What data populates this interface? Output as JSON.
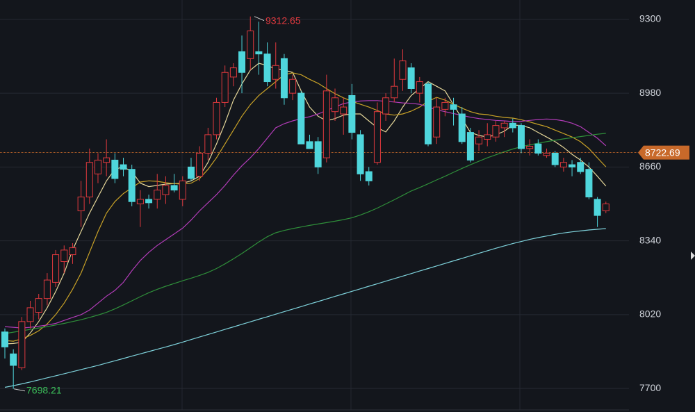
{
  "chart_data": {
    "type": "candlestick",
    "ylim": [
      7607,
      9384
    ],
    "yticks": [
      7700,
      8020,
      8340,
      8660,
      8980,
      9300
    ],
    "grid": true,
    "up_color": "#e0393e",
    "down_color": "#4fd6dc",
    "open": [
      7945,
      7850,
      7790,
      7990,
      8030,
      8090,
      8160,
      8250,
      8280,
      8470,
      8530,
      8630,
      8680,
      8690,
      8670,
      8650,
      8500,
      8520,
      8520,
      8540,
      8580,
      8520,
      8660,
      8620,
      8720,
      8800,
      8940,
      9050,
      9160,
      9130,
      9160,
      9150,
      9040,
      9130,
      8980,
      8980,
      8770,
      8770,
      8700,
      8900,
      8890,
      8970,
      8800,
      8640,
      8680,
      8890,
      8960,
      9040,
      9090,
      8980,
      9020,
      8790,
      8910,
      8930,
      8890,
      8810,
      8760,
      8780,
      8790,
      8830,
      8850,
      8840,
      8740,
      8760,
      8710,
      8720,
      8660,
      8670,
      8680,
      8650,
      8520,
      8470
    ],
    "high": [
      7960,
      7870,
      8010,
      8080,
      8110,
      8200,
      8300,
      8320,
      8330,
      8600,
      8740,
      8720,
      8780,
      8720,
      8700,
      8670,
      8560,
      8540,
      8630,
      8620,
      8630,
      8620,
      8700,
      8750,
      8830,
      8960,
      9100,
      9110,
      9230,
      9312.65,
      9290,
      9200,
      9200,
      9150,
      9060,
      8990,
      8800,
      8790,
      9060,
      9000,
      8960,
      9020,
      8820,
      8660,
      8940,
      8980,
      9130,
      9170,
      9110,
      9050,
      9030,
      8960,
      8960,
      8960,
      8920,
      8830,
      8820,
      8850,
      8860,
      8860,
      8870,
      8850,
      8780,
      8780,
      8740,
      8730,
      8700,
      8690,
      8700,
      8680,
      8530,
      8510
    ],
    "low": [
      7830,
      7698.21,
      7780,
      7960,
      8000,
      8060,
      8140,
      8200,
      8240,
      8400,
      8500,
      8590,
      8620,
      8590,
      8620,
      8490,
      8400,
      8480,
      8480,
      8500,
      8550,
      8490,
      8600,
      8600,
      8690,
      8780,
      8920,
      9010,
      8980,
      9080,
      9060,
      9010,
      9000,
      8930,
      8950,
      8760,
      8740,
      8630,
      8680,
      8860,
      8800,
      8780,
      8600,
      8580,
      8670,
      8860,
      8940,
      8990,
      8980,
      8940,
      8750,
      8760,
      8880,
      8840,
      8760,
      8680,
      8730,
      8750,
      8770,
      8790,
      8810,
      8720,
      8710,
      8710,
      8700,
      8660,
      8640,
      8620,
      8630,
      8520,
      8400,
      8460
    ],
    "close": [
      7880,
      7800,
      7990,
      8050,
      8090,
      8170,
      8280,
      8300,
      8310,
      8530,
      8680,
      8690,
      8700,
      8610,
      8650,
      8510,
      8520,
      8505,
      8560,
      8580,
      8560,
      8600,
      8610,
      8720,
      8800,
      8940,
      9070,
      9090,
      9070,
      9250,
      9150,
      9030,
      9100,
      8960,
      9040,
      8760,
      8740,
      8660,
      8990,
      8960,
      8920,
      8810,
      8630,
      8600,
      8900,
      8960,
      9010,
      9120,
      9000,
      9030,
      8760,
      8920,
      8940,
      8910,
      8770,
      8690,
      8790,
      8800,
      8840,
      8850,
      8830,
      8740,
      8750,
      8720,
      8720,
      8670,
      8680,
      8660,
      8640,
      8530,
      8450,
      8500
    ],
    "lines": [
      {
        "color": "#e6d79a",
        "values": [
          7893,
          7895,
          7900,
          7940,
          7990,
          8050,
          8120,
          8200,
          8300,
          8380,
          8460,
          8530,
          8600,
          8650,
          8661,
          8640,
          8590,
          8575,
          8580,
          8586,
          8588,
          8590,
          8600,
          8620,
          8680,
          8760,
          8850,
          8950,
          9020,
          9080,
          9110,
          9100,
          9085,
          9080,
          9070,
          8990,
          8920,
          8880,
          8860,
          8870,
          8885,
          8890,
          8890,
          8860,
          8830,
          8812,
          8860,
          8920,
          8970,
          9000,
          9030,
          9010,
          8990,
          8930,
          8870,
          8810,
          8797,
          8790,
          8800,
          8815,
          8842,
          8840,
          8830,
          8810,
          8790,
          8770,
          8745,
          8715,
          8690,
          8660,
          8620,
          8577
        ]
      },
      {
        "color": "#c9a227",
        "values": [
          7908,
          7905,
          7915,
          7930,
          7950,
          7980,
          8020,
          8070,
          8130,
          8200,
          8290,
          8380,
          8460,
          8510,
          8545,
          8570,
          8595,
          8600,
          8598,
          8592,
          8588,
          8586,
          8590,
          8610,
          8650,
          8700,
          8760,
          8820,
          8880,
          8930,
          8970,
          9000,
          9030,
          9060,
          9068,
          9060,
          9040,
          9023,
          9000,
          8978,
          8960,
          8945,
          8932,
          8920,
          8905,
          8890,
          8885,
          8890,
          8902,
          8920,
          8945,
          8962,
          8950,
          8932,
          8915,
          8900,
          8890,
          8887,
          8880,
          8875,
          8872,
          8865,
          8855,
          8845,
          8835,
          8820,
          8805,
          8790,
          8770,
          8740,
          8700,
          8661
        ]
      },
      {
        "color": "#b23cb8",
        "values": [
          7968,
          7965,
          7962,
          7965,
          7970,
          7975,
          7982,
          7995,
          8008,
          8020,
          8040,
          8070,
          8100,
          8125,
          8160,
          8210,
          8255,
          8290,
          8320,
          8345,
          8370,
          8395,
          8430,
          8470,
          8505,
          8540,
          8580,
          8625,
          8665,
          8700,
          8740,
          8785,
          8830,
          8848,
          8860,
          8870,
          8878,
          8890,
          8905,
          8920,
          8935,
          8942,
          8946,
          8948,
          8948,
          8945,
          8942,
          8938,
          8936,
          8932,
          8920,
          8908,
          8900,
          8892,
          8884,
          8876,
          8870,
          8866,
          8862,
          8860,
          8857,
          8858,
          8862,
          8866,
          8868,
          8866,
          8860,
          8850,
          8835,
          8810,
          8785,
          8752
        ]
      },
      {
        "color": "#2f8f3a",
        "values": [
          7938,
          7944,
          7950,
          7956,
          7962,
          7968,
          7975,
          7982,
          7990,
          7998,
          8008,
          8018,
          8030,
          8045,
          8062,
          8080,
          8098,
          8115,
          8130,
          8143,
          8155,
          8167,
          8178,
          8190,
          8203,
          8220,
          8240,
          8262,
          8285,
          8310,
          8335,
          8358,
          8375,
          8385,
          8393,
          8400,
          8407,
          8413,
          8419,
          8425,
          8432,
          8440,
          8452,
          8466,
          8482,
          8500,
          8518,
          8537,
          8556,
          8571,
          8587,
          8604,
          8620,
          8637,
          8654,
          8670,
          8685,
          8700,
          8713,
          8726,
          8738,
          8748,
          8756,
          8763,
          8770,
          8776,
          8782,
          8787,
          8792,
          8797,
          8802,
          8806
        ]
      },
      {
        "color": "#7fd3dc",
        "values": [
          7705,
          7712,
          7720,
          7728,
          7737,
          7746,
          7755,
          7764,
          7773,
          7782,
          7791,
          7800,
          7810,
          7820,
          7830,
          7840,
          7850,
          7860,
          7870,
          7880,
          7890,
          7901,
          7912,
          7923,
          7934,
          7945,
          7956,
          7967,
          7978,
          7989,
          8000,
          8011,
          8022,
          8033,
          8044,
          8055,
          8066,
          8077,
          8088,
          8099,
          8110,
          8121,
          8132,
          8143,
          8154,
          8165,
          8176,
          8187,
          8198,
          8209,
          8220,
          8231,
          8242,
          8253,
          8264,
          8275,
          8286,
          8297,
          8308,
          8318,
          8328,
          8337,
          8346,
          8354,
          8361,
          8368,
          8374,
          8379,
          8383,
          8387,
          8390,
          8393
        ]
      }
    ],
    "max_value": 9312.65,
    "max_color": "#e0393e",
    "min_value": 7698.21,
    "min_color": "#3cc05a",
    "last_value": 8722.69,
    "last_color": "#c8692a"
  }
}
